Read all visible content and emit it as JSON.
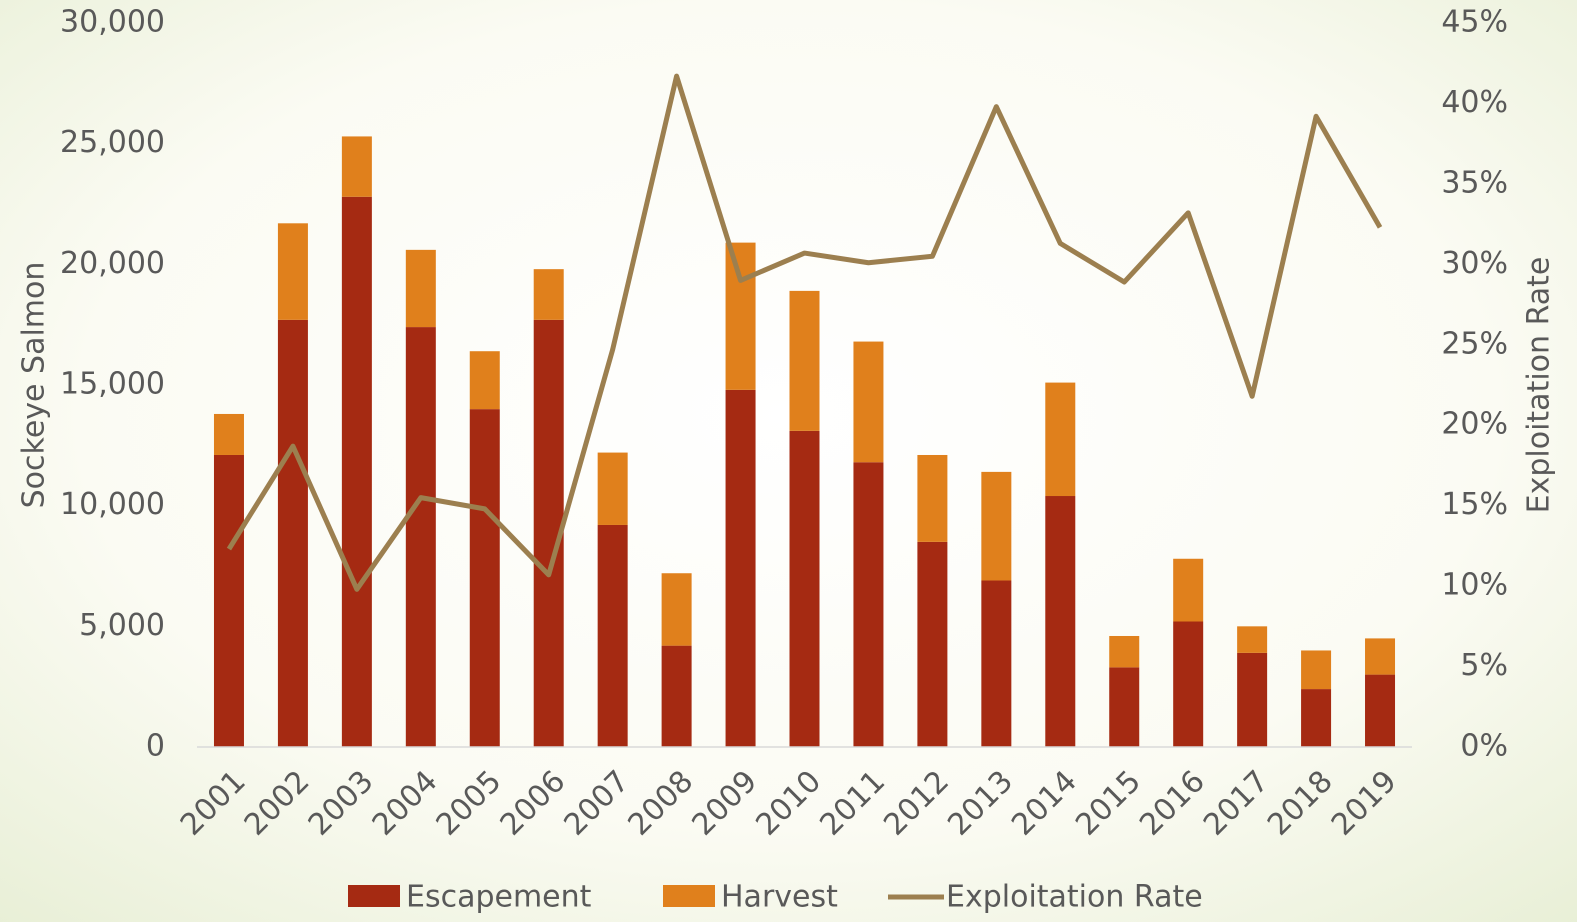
{
  "chart_data": {
    "type": "bar",
    "categories": [
      "2001",
      "2002",
      "2003",
      "2004",
      "2005",
      "2006",
      "2007",
      "2008",
      "2009",
      "2010",
      "2011",
      "2012",
      "2013",
      "2014",
      "2015",
      "2016",
      "2017",
      "2018",
      "2019"
    ],
    "stacked": true,
    "series": [
      {
        "name": "Escapement",
        "color": "#a52a12",
        "type": "bar",
        "values": [
          12100,
          17700,
          22800,
          17400,
          14000,
          17700,
          9200,
          4200,
          14800,
          13100,
          11800,
          8500,
          6900,
          10400,
          3300,
          5200,
          3900,
          2400,
          3000
        ]
      },
      {
        "name": "Harvest",
        "color": "#e0801c",
        "type": "bar",
        "values": [
          1700,
          4000,
          2500,
          3200,
          2400,
          2100,
          3000,
          3000,
          6100,
          5800,
          5000,
          3600,
          4500,
          4700,
          1300,
          2600,
          1100,
          1600,
          1500
        ]
      },
      {
        "name": "Exploitation Rate",
        "color": "#9c7f4f",
        "type": "line",
        "axis": "y2",
        "values": [
          12.3,
          18.7,
          9.8,
          15.5,
          14.8,
          10.7,
          24.7,
          41.7,
          29.0,
          30.7,
          30.1,
          30.5,
          39.8,
          31.3,
          28.9,
          33.2,
          21.8,
          39.2,
          32.3
        ]
      }
    ],
    "ylabel": "Sockeye Salmon",
    "y2label": "Exploitation Rate",
    "ylim": [
      0,
      30000
    ],
    "yticks": [
      0,
      {
        "value": 5000,
        "label": "5,000"
      },
      {
        "value": 10000,
        "label": "10,000"
      },
      {
        "value": 15000,
        "label": "15,000"
      },
      {
        "value": 20000,
        "label": "20,000"
      },
      {
        "value": 25000,
        "label": "25,000"
      },
      {
        "value": 30000,
        "label": "30,000"
      }
    ],
    "y2lim": [
      0,
      45
    ],
    "y2ticks": [
      {
        "value": 0,
        "label": "0%"
      },
      {
        "value": 5,
        "label": "5%"
      },
      {
        "value": 10,
        "label": "10%"
      },
      {
        "value": 15,
        "label": "15%"
      },
      {
        "value": 20,
        "label": "20%"
      },
      {
        "value": 25,
        "label": "25%"
      },
      {
        "value": 30,
        "label": "30%"
      },
      {
        "value": 35,
        "label": "35%"
      },
      {
        "value": 40,
        "label": "40%"
      },
      {
        "value": 45,
        "label": "45%"
      }
    ],
    "legend": "bottom"
  }
}
